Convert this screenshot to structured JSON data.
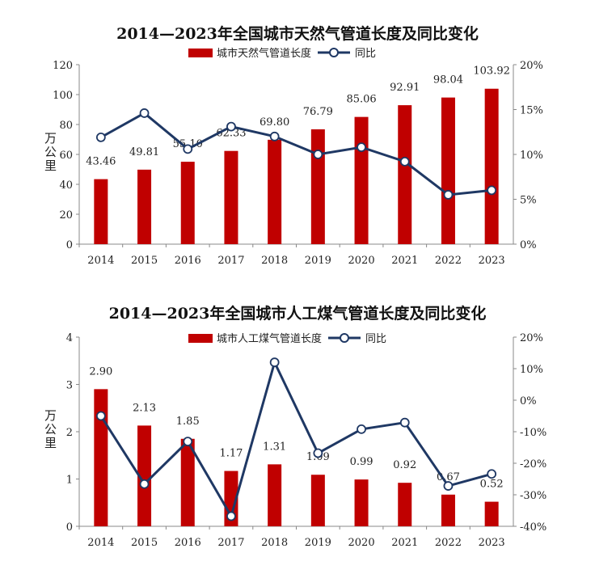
{
  "chart_data": [
    {
      "type": "bar+line",
      "title": "2014—2023年全国城市天然气管道长度及同比变化",
      "categories": [
        "2014",
        "2015",
        "2016",
        "2017",
        "2018",
        "2019",
        "2020",
        "2021",
        "2022",
        "2023"
      ],
      "series": [
        {
          "name": "城市天然气管道长度",
          "axis": "left",
          "values": [
            43.46,
            49.81,
            55.1,
            62.33,
            69.8,
            76.79,
            85.06,
            92.91,
            98.04,
            103.92
          ],
          "labels": [
            "43.46",
            "49.81",
            "55.10",
            "62.33",
            "69.80",
            "76.79",
            "85.06",
            "92.91",
            "98.04",
            "103.92"
          ]
        },
        {
          "name": "同比",
          "axis": "right",
          "values": [
            11.9,
            14.6,
            10.6,
            13.1,
            12.0,
            10.0,
            10.8,
            9.2,
            5.5,
            6.0
          ]
        }
      ],
      "ylabel": "万公里",
      "ylim": [
        0,
        120
      ],
      "yticks": [
        "0",
        "20",
        "40",
        "60",
        "80",
        "100",
        "120"
      ],
      "y2lim": [
        0,
        20
      ],
      "y2ticks": [
        "0%",
        "5%",
        "10%",
        "15%",
        "20%"
      ],
      "legend": "top",
      "grid": false
    },
    {
      "type": "bar+line",
      "title": "2014—2023年全国城市人工煤气管道长度及同比变化",
      "categories": [
        "2014",
        "2015",
        "2016",
        "2017",
        "2018",
        "2019",
        "2020",
        "2021",
        "2022",
        "2023"
      ],
      "series": [
        {
          "name": "城市人工煤气管道长度",
          "axis": "left",
          "values": [
            2.9,
            2.13,
            1.85,
            1.17,
            1.31,
            1.09,
            0.99,
            0.92,
            0.67,
            0.52
          ],
          "labels": [
            "2.90",
            "2.13",
            "1.85",
            "1.17",
            "1.31",
            "1.09",
            "0.99",
            "0.92",
            "0.67",
            "0.52"
          ]
        },
        {
          "name": "同比",
          "axis": "right",
          "values": [
            -5,
            -26.6,
            -13.1,
            -36.8,
            12.0,
            -16.8,
            -9.2,
            -7.1,
            -27.2,
            -23.4
          ]
        }
      ],
      "ylabel": "万公里",
      "ylim": [
        0,
        4
      ],
      "yticks": [
        "0",
        "1",
        "2",
        "3",
        "4"
      ],
      "y2lim": [
        -40,
        20
      ],
      "y2ticks": [
        "-40%",
        "-30%",
        "-20%",
        "-10%",
        "0%",
        "10%",
        "20%"
      ],
      "legend": "top",
      "grid": false
    }
  ],
  "colors": {
    "bar": "#c00000",
    "line": "#1f3864"
  }
}
